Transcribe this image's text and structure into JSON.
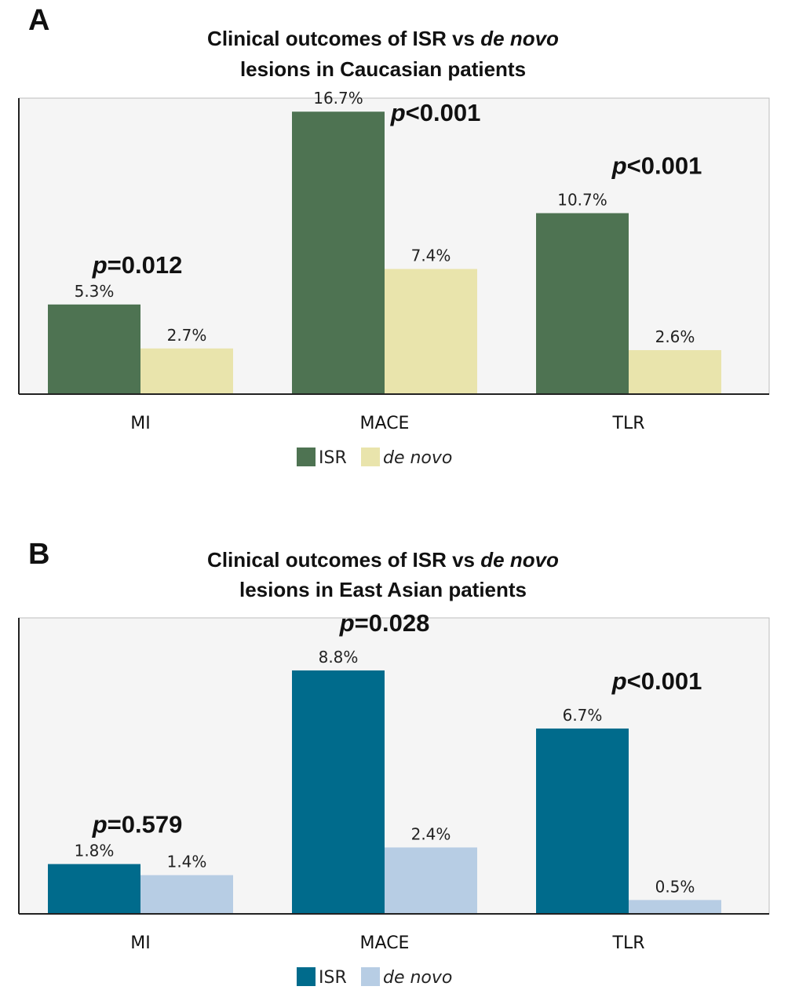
{
  "chart_data": [
    {
      "panel": "A",
      "type": "bar",
      "title_line1": "Clinical outcomes of ISR vs",
      "title_line1_italic": "de novo",
      "title_line2": "lesions in Caucasian patients",
      "categories": [
        "MI",
        "MACE",
        "TLR"
      ],
      "series": [
        {
          "name": "ISR",
          "values": [
            5.3,
            16.7,
            10.7
          ],
          "labels": [
            "5.3%",
            "16.7%",
            "10.7%"
          ],
          "color": "#4e7352"
        },
        {
          "name": "de novo",
          "values": [
            2.7,
            7.4,
            2.6
          ],
          "labels": [
            "2.7%",
            "7.4%",
            "2.6%"
          ],
          "color": "#e9e4ac"
        }
      ],
      "p_values": [
        {
          "p": "p",
          "rest": "=0.012"
        },
        {
          "p": "p",
          "rest": "<0.001"
        },
        {
          "p": "p",
          "rest": "<0.001"
        }
      ],
      "ylim": [
        0,
        17.5
      ],
      "legend": [
        {
          "label": "ISR",
          "italic": false,
          "color": "#4e7352"
        },
        {
          "label": "de novo",
          "italic": true,
          "color": "#e9e4ac"
        }
      ]
    },
    {
      "panel": "B",
      "type": "bar",
      "title_line1": "Clinical outcomes of ISR vs",
      "title_line1_italic": "de novo",
      "title_line2": "lesions in East Asian patients",
      "categories": [
        "MI",
        "MACE",
        "TLR"
      ],
      "series": [
        {
          "name": "ISR",
          "values": [
            1.8,
            8.8,
            6.7
          ],
          "labels": [
            "1.8%",
            "8.8%",
            "6.7%"
          ],
          "color": "#006b8c"
        },
        {
          "name": "de novo",
          "values": [
            1.4,
            2.4,
            0.5
          ],
          "labels": [
            "1.4%",
            "2.4%",
            "0.5%"
          ],
          "color": "#b7cde4"
        }
      ],
      "p_values": [
        {
          "p": "p",
          "rest": "=0.579"
        },
        {
          "p": "p",
          "rest": "=0.028"
        },
        {
          "p": "p",
          "rest": "<0.001"
        }
      ],
      "ylim": [
        0,
        10.7
      ],
      "legend": [
        {
          "label": "ISR",
          "italic": false,
          "color": "#006b8c"
        },
        {
          "label": "de novo",
          "italic": true,
          "color": "#b7cde4"
        }
      ]
    }
  ]
}
